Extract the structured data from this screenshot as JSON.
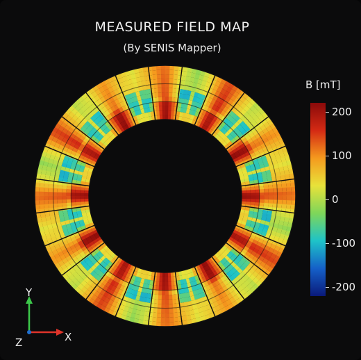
{
  "header": {
    "title": "MEASURED FIELD MAP",
    "subtitle": "(By SENIS Mapper)"
  },
  "colorbar": {
    "title": "B [mT]",
    "ticks": [
      "200",
      "100",
      "0",
      "-100",
      "-200"
    ],
    "tick_values": [
      200,
      100,
      0,
      -100,
      -200
    ],
    "range": [
      -220,
      220
    ],
    "colors": [
      "#0a1a7a",
      "#1560c8",
      "#1ec3c8",
      "#7ed65a",
      "#e8e23a",
      "#f59a1e",
      "#d42a14",
      "#8a0a0a"
    ]
  },
  "field_map": {
    "sectors": 24,
    "radial_layers": 3,
    "peak_directions_deg": [
      0,
      30,
      60,
      90,
      120,
      150,
      180,
      210,
      240,
      270,
      300,
      330
    ]
  },
  "axes": {
    "y_label": "Y",
    "x_label": "X",
    "z_label": "Z",
    "y_color": "#3cc84a",
    "x_color": "#e0342a"
  }
}
